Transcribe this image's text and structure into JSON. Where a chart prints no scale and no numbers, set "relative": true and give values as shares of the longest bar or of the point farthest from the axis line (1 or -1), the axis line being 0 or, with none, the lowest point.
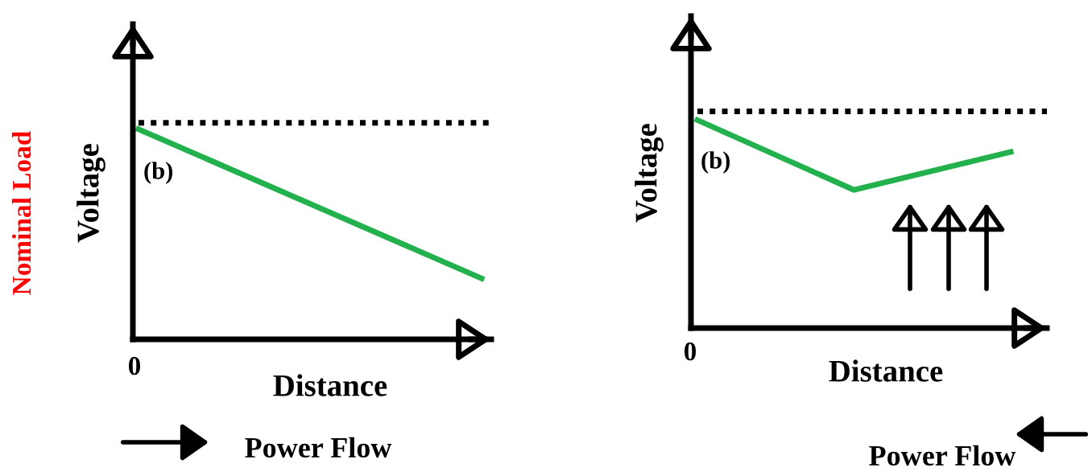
{
  "chart_data": [
    {
      "type": "line",
      "relative": true,
      "xlabel": "Distance",
      "ylabel": "Voltage",
      "categories": [
        null,
        null
      ],
      "legend": false,
      "marker": "none",
      "line_style": "solid",
      "series": [
        {
          "color": "#22b14c",
          "values": [
            1,
            0.29
          ]
        }
      ],
      "ref_lines": [
        {
          "axis": "y",
          "value": 1.03,
          "color": "#000000",
          "line_style": "dotted"
        }
      ],
      "annotations": [
        "(b)",
        "0",
        "Power Flow",
        "Nominal Load"
      ]
    },
    {
      "type": "line",
      "relative": true,
      "xlabel": "Distance",
      "ylabel": "Voltage",
      "categories": [
        null,
        null,
        null
      ],
      "legend": false,
      "marker": "none",
      "line_style": "solid",
      "series": [
        {
          "color": "#22b14c",
          "values": [
            1,
            0.664,
            0.847
          ]
        }
      ],
      "ref_lines": [
        {
          "axis": "y",
          "value": 1.042,
          "color": "#000000",
          "line_style": "dotted"
        }
      ],
      "annotations": [
        "(b)",
        "0",
        "Power Flow"
      ]
    }
  ]
}
